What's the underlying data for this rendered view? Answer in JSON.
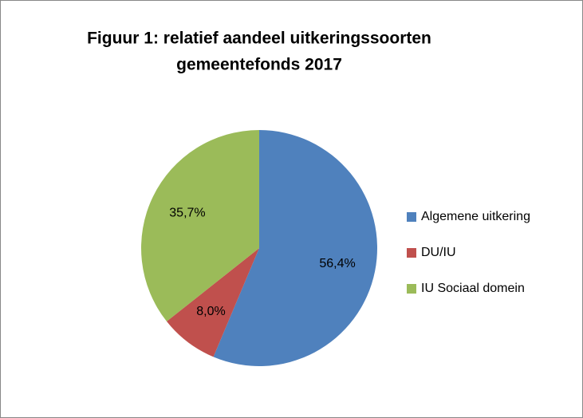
{
  "chart_data": {
    "type": "pie",
    "title": [
      "Figuur 1: relatief aandeel uitkeringssoorten",
      "gemeentefonds 2017"
    ],
    "categories": [
      "Algemene uitkering",
      "DU/IU",
      "IU Sociaal domein"
    ],
    "values": [
      56.4,
      8.0,
      35.7
    ],
    "value_labels": [
      "56,4%",
      "8,0%",
      "35,7%"
    ],
    "colors": [
      "#4f81bd",
      "#c0504d",
      "#9bbb59"
    ],
    "legend": "right"
  }
}
